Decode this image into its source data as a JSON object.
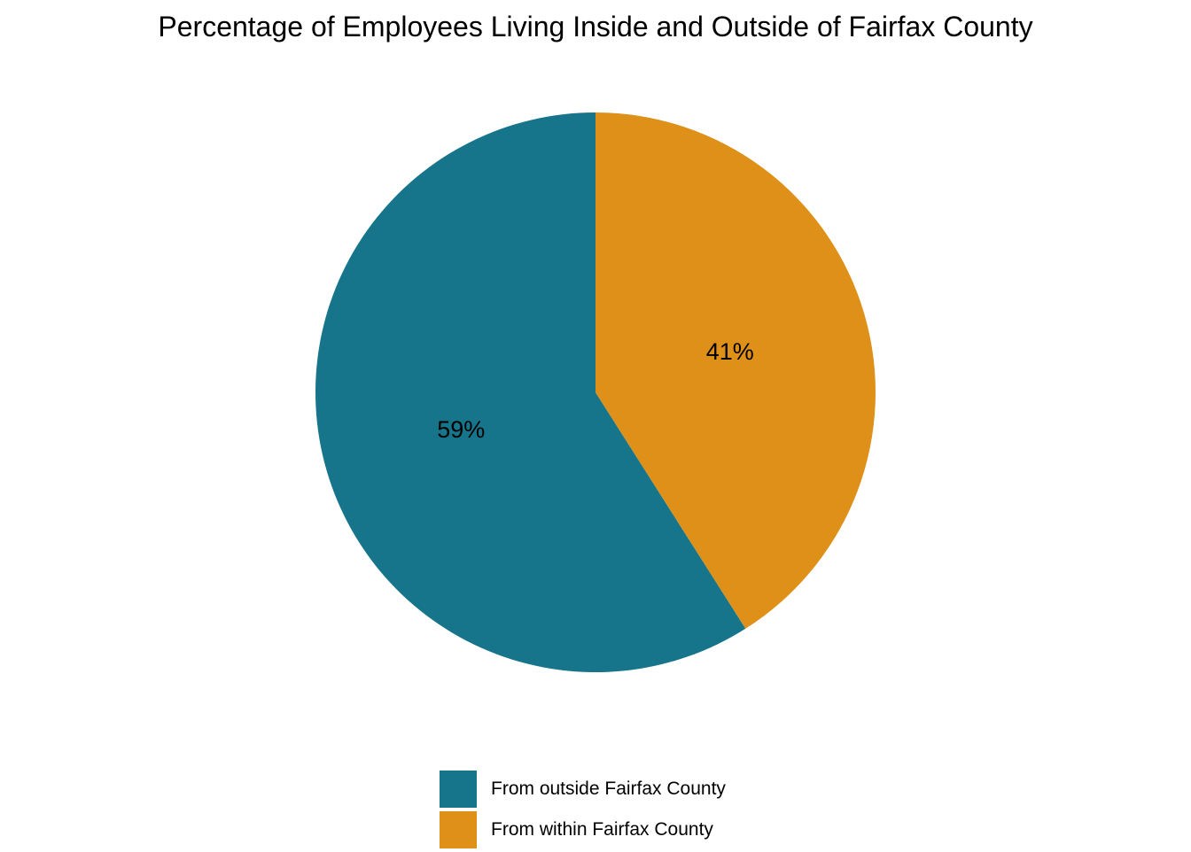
{
  "chart_data": {
    "type": "pie",
    "title": "Percentage of Employees Living Inside and Outside of Fairfax County",
    "categories": [
      "From outside Fairfax County",
      "From within Fairfax County"
    ],
    "values": [
      59,
      41
    ],
    "labels": [
      "59%",
      "41%"
    ],
    "colors": [
      "#16758a",
      "#de9018"
    ],
    "legend_position": "bottom",
    "start": "12 o'clock",
    "direction": "counterclockwise"
  }
}
